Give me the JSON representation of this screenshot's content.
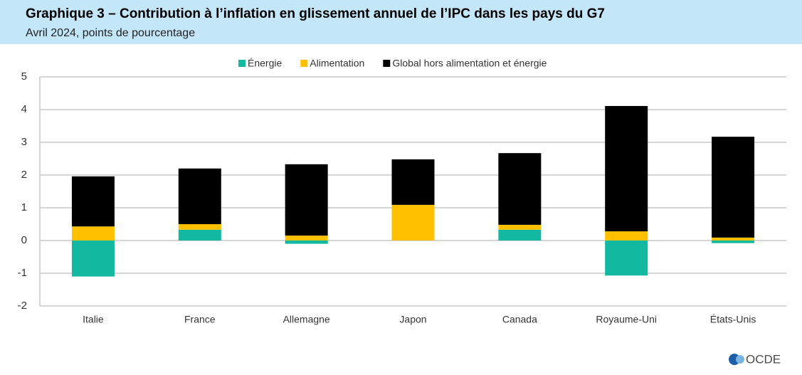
{
  "chart_data": {
    "type": "stacked-bar",
    "title": "Graphique 3 – Contribution à l’inflation en glissement annuel de l’IPC dans les pays du G7",
    "subtitle": "Avril 2024, points de pourcentage",
    "categories": [
      "Italie",
      "France",
      "Allemagne",
      "Japon",
      "Canada",
      "Royaume-Uni",
      "États-Unis"
    ],
    "series": [
      {
        "name": "Énergie",
        "color": "#12b8a0",
        "values": [
          -1.1,
          0.33,
          -0.1,
          0,
          0.33,
          -1.07,
          -0.08
        ]
      },
      {
        "name": "Alimentation",
        "color": "#ffc000",
        "values": [
          0.43,
          0.17,
          0.15,
          1.09,
          0.15,
          0.28,
          0.09
        ]
      },
      {
        "name": "Global hors alimentation et énergie",
        "color": "#000000",
        "values": [
          1.53,
          1.7,
          2.18,
          1.39,
          2.19,
          3.83,
          3.08
        ]
      }
    ],
    "ylim": [
      -2,
      5
    ],
    "yticks": [
      -2,
      -1,
      0,
      1,
      2,
      3,
      4,
      5
    ],
    "grid": true,
    "legend": "top",
    "source_logo": "OCDE"
  }
}
